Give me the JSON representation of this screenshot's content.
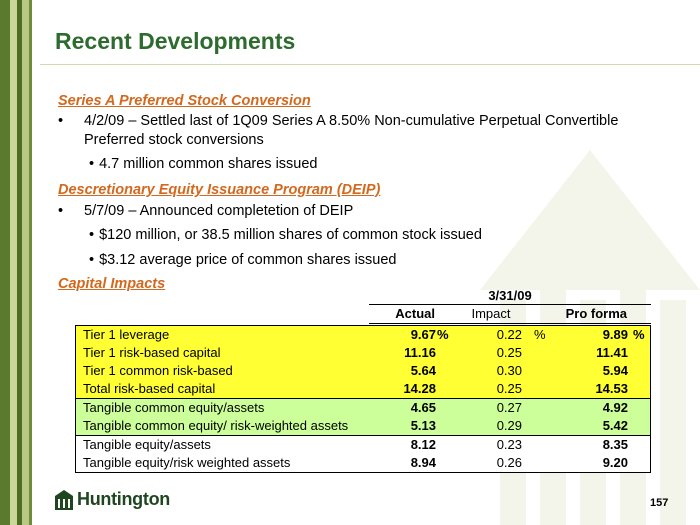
{
  "title": "Recent Developments",
  "sections": {
    "preferred": {
      "heading": "Series A Preferred Stock Conversion",
      "bullet_mark": "•",
      "bullet": "4/2/09 – Settled last of 1Q09 Series A 8.50% Non-cumulative Perpetual Convertible Preferred stock conversions",
      "sub_mark": "•",
      "sub_bullet": "4.7 million common shares issued"
    },
    "deip": {
      "heading": "Descretionary Equity Issuance Program (DEIP)",
      "bullet_mark": "•",
      "bullet": "5/7/09 – Announced completetion of DEIP",
      "sub_mark": "•",
      "sub_bullets": [
        "$120 million, or 38.5 million shares of common stock issued",
        "$3.12 average price of common shares issued"
      ]
    },
    "capital": {
      "heading": "Capital Impacts"
    }
  },
  "table": {
    "date_header": "3/31/09",
    "columns": {
      "actual": "Actual",
      "impact": "Impact",
      "pro_forma": "Pro forma"
    },
    "percent_sign": "%",
    "groups": [
      {
        "color": "#ffff33",
        "rows": [
          {
            "label": "Tier 1 leverage",
            "actual": "9.67",
            "impact": "0.22",
            "pro_forma": "9.89"
          },
          {
            "label": "Tier 1 risk-based capital",
            "actual": "11.16",
            "impact": "0.25",
            "pro_forma": "11.41"
          },
          {
            "label": "Tier 1 common risk-based",
            "actual": "5.64",
            "impact": "0.30",
            "pro_forma": "5.94"
          },
          {
            "label": "Total risk-based capital",
            "actual": "14.28",
            "impact": "0.25",
            "pro_forma": "14.53"
          }
        ]
      },
      {
        "color": "#ccff99",
        "rows": [
          {
            "label": "Tangible common equity/assets",
            "actual": "4.65",
            "impact": "0.27",
            "pro_forma": "4.92"
          },
          {
            "label": "Tangible common equity/ risk-weighted assets",
            "actual": "5.13",
            "impact": "0.29",
            "pro_forma": "5.42"
          }
        ]
      },
      {
        "color": "#ffffff",
        "rows": [
          {
            "label": "Tangible equity/assets",
            "actual": "8.12",
            "impact": "0.23",
            "pro_forma": "8.35"
          },
          {
            "label": "Tangible equity/risk weighted  assets",
            "actual": "8.94",
            "impact": "0.26",
            "pro_forma": "9.20"
          }
        ]
      }
    ]
  },
  "footer": {
    "logo_icon": "huntington-logo-icon",
    "logo_text": "Huntington",
    "page_number": "157"
  },
  "colors": {
    "title": "#2e6b2e",
    "section_heading": "#d2691e",
    "stripe_dark": "#5a7a2e",
    "stripe_light": "#c9d79a"
  }
}
